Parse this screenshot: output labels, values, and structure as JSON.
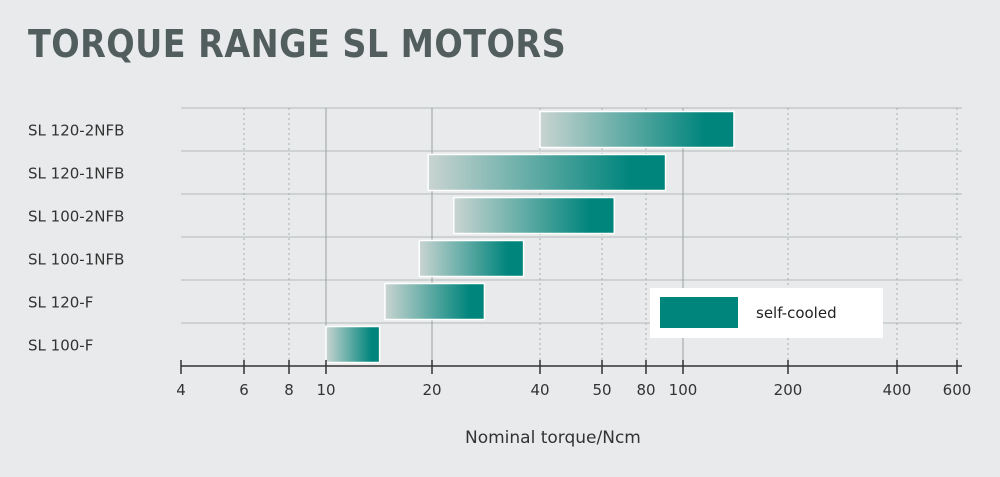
{
  "chart_data": {
    "type": "bar",
    "orientation": "horizontal-range",
    "title": "TORQUE RANGE SL MOTORS",
    "xlabel": "Nominal torque/Ncm",
    "ylabel": "",
    "x_scale": "log",
    "xlim": [
      4,
      600
    ],
    "x_ticks": [
      4,
      6,
      8,
      10,
      20,
      40,
      50,
      80,
      100,
      200,
      400,
      600
    ],
    "x_tick_labels": [
      "4",
      "6",
      "8",
      "10",
      "20",
      "40",
      "50",
      "80",
      "100",
      "200",
      "400",
      "600"
    ],
    "categories": [
      "SL 120-2NFB",
      "SL 120-1NFB",
      "SL 100-2NFB",
      "SL 100-1NFB",
      "SL 120-F",
      "SL 100-F"
    ],
    "series": [
      {
        "name": "self-cooled",
        "ranges": [
          [
            40,
            140
          ],
          [
            19.5,
            90
          ],
          [
            23,
            57
          ],
          [
            18.4,
            36
          ],
          [
            14.7,
            28
          ],
          [
            10,
            14.2
          ]
        ]
      }
    ],
    "legend": {
      "entries": [
        "self-cooled"
      ],
      "placement": "bottom-right"
    },
    "colors": {
      "bar_start": "#c9d4d1",
      "bar_end": "#00857c",
      "grid": "#b5babb"
    },
    "grid": true
  }
}
